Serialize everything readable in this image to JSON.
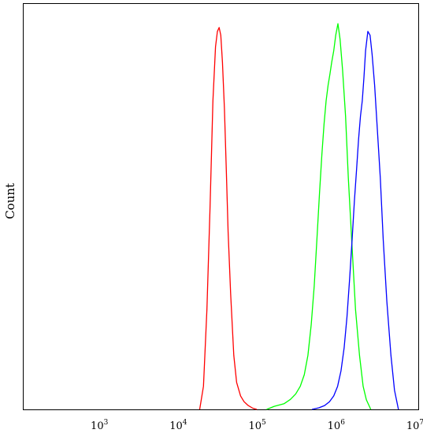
{
  "chart_data": {
    "type": "line",
    "title": "",
    "xlabel": "",
    "ylabel": "Count",
    "x_scale": "log",
    "xlim": [
      100,
      10000000
    ],
    "ylim": [
      0,
      100
    ],
    "grid": false,
    "legend": "none",
    "x_ticks": [
      {
        "value": 1000,
        "base": "10",
        "exp": "3"
      },
      {
        "value": 10000,
        "base": "10",
        "exp": "4"
      },
      {
        "value": 100000,
        "base": "10",
        "exp": "5"
      },
      {
        "value": 1000000,
        "base": "10",
        "exp": "6"
      },
      {
        "value": 10000000,
        "base": "10",
        "exp": "7"
      }
    ],
    "series": [
      {
        "color": "#ff0000",
        "x": [
          17000,
          19000,
          21000,
          23000,
          25000,
          27000,
          28500,
          30000,
          31500,
          33000,
          35000,
          37000,
          39000,
          42000,
          46000,
          50000,
          56000,
          62000,
          70000,
          80000,
          90000
        ],
        "y": [
          0,
          6,
          26,
          52,
          80,
          94,
          98,
          99,
          97,
          90,
          78,
          62,
          46,
          30,
          14,
          7,
          3.5,
          2,
          1,
          0.3,
          0
        ]
      },
      {
        "color": "#00ff00",
        "x": [
          120000,
          150000,
          200000,
          240000,
          280000,
          320000,
          360000,
          400000,
          440000,
          480000,
          520000,
          560000,
          600000,
          640000,
          680000,
          720000,
          760000,
          800000,
          850000,
          900000,
          960000,
          1020000,
          1100000,
          1200000,
          1300000,
          1450000,
          1600000,
          1800000,
          2000000,
          2200000,
          2500000
        ],
        "y": [
          0,
          0.8,
          1.5,
          2.6,
          4,
          6,
          9,
          14,
          22,
          32,
          44,
          56,
          66,
          74,
          80,
          84,
          87,
          90,
          93,
          97,
          100,
          96,
          88,
          76,
          60,
          42,
          26,
          14,
          6,
          2.5,
          0
        ]
      },
      {
        "color": "#0000ff",
        "x": [
          450000,
          550000,
          650000,
          750000,
          850000,
          950000,
          1050000,
          1150000,
          1250000,
          1350000,
          1450000,
          1550000,
          1650000,
          1750000,
          1850000,
          1950000,
          2050000,
          2150000,
          2300000,
          2450000,
          2600000,
          2800000,
          3000000,
          3300000,
          3600000,
          4000000,
          4500000,
          5000000,
          5600000
        ],
        "y": [
          0,
          0.4,
          1,
          2,
          3.5,
          6,
          10,
          16,
          24,
          34,
          44,
          54,
          62,
          70,
          76,
          80,
          86,
          93,
          98,
          97,
          92,
          84,
          74,
          60,
          44,
          28,
          14,
          5,
          0
        ]
      }
    ]
  }
}
